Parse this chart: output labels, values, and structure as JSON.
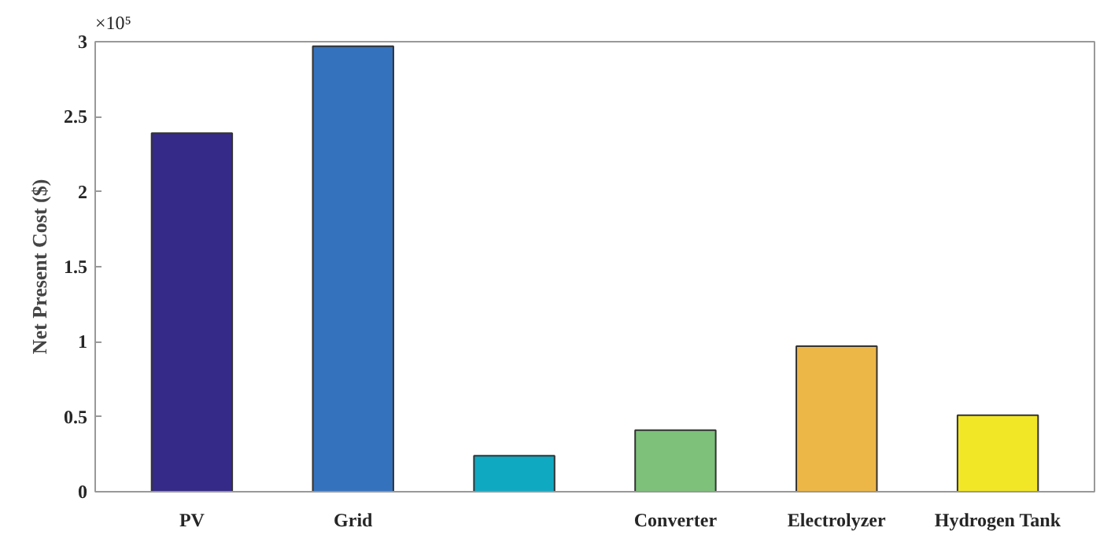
{
  "chart_data": {
    "type": "bar",
    "ylabel": "Net Present Cost ($)",
    "categories": [
      "PV",
      "Grid",
      null,
      "Converter",
      "Electrolyzer",
      "Hydrogen Tank"
    ],
    "values": [
      2.39,
      2.97,
      0.24,
      0.41,
      0.97,
      0.51
    ],
    "colors": [
      "#352a87",
      "#3572bd",
      "#10a9c2",
      "#7dc17b",
      "#edb748",
      "#f2e726"
    ],
    "ylim": [
      0,
      3
    ],
    "yticks": [
      0,
      0.5,
      1,
      1.5,
      2,
      2.5,
      3
    ],
    "annotations": [
      "×10⁵"
    ],
    "grid": false
  }
}
